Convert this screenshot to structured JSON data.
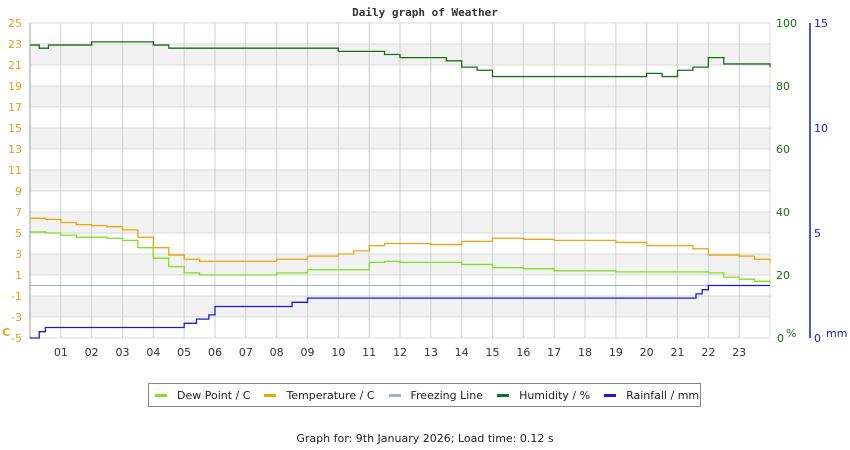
{
  "chart_data": {
    "type": "line",
    "title": "Daily graph of Weather",
    "x_ticks": [
      "01",
      "02",
      "03",
      "04",
      "05",
      "06",
      "07",
      "08",
      "09",
      "10",
      "11",
      "12",
      "13",
      "14",
      "15",
      "16",
      "17",
      "18",
      "19",
      "20",
      "21",
      "22",
      "23"
    ],
    "axes": {
      "left": {
        "label": "C",
        "ticks": [
          25,
          23,
          21,
          19,
          17,
          15,
          13,
          11,
          9,
          7,
          5,
          3,
          1,
          -1,
          -3,
          -5
        ],
        "range": [
          -5,
          25
        ],
        "color": "#e5a11a"
      },
      "right_humidity": {
        "label": "%",
        "ticks": [
          100,
          80,
          60,
          40,
          20,
          0
        ],
        "range": [
          0,
          100
        ],
        "color": "#1b6e1b"
      },
      "right_rain": {
        "label": "mm",
        "ticks": [
          15,
          10,
          5,
          0
        ],
        "range": [
          0,
          15
        ],
        "color": "#1a1ad6"
      }
    },
    "grid": true,
    "legend_position": "bottom",
    "series": [
      {
        "name": "Dew Point / C",
        "color": "#7fe01c",
        "axis": "left",
        "x": [
          0,
          0.5,
          1,
          1.5,
          2,
          2.5,
          3,
          3.5,
          4,
          4.5,
          5,
          5.5,
          6,
          7,
          8,
          9,
          10,
          11,
          11.5,
          12,
          13,
          14,
          15,
          16,
          17,
          18,
          19,
          20,
          21,
          21.5,
          22,
          22.5,
          23,
          23.5,
          24
        ],
        "values": [
          5.1,
          5.0,
          4.8,
          4.6,
          4.6,
          4.5,
          4.3,
          3.6,
          2.6,
          1.8,
          1.2,
          1.0,
          1.0,
          1.0,
          1.2,
          1.5,
          1.5,
          2.2,
          2.3,
          2.2,
          2.2,
          2.0,
          1.7,
          1.6,
          1.4,
          1.4,
          1.3,
          1.3,
          1.3,
          1.3,
          1.2,
          0.8,
          0.6,
          0.4,
          0.2
        ]
      },
      {
        "name": "Temperature / C",
        "color": "#f0a30a",
        "axis": "left",
        "x": [
          0,
          0.5,
          1,
          1.5,
          2,
          2.5,
          3,
          3.5,
          4,
          4.5,
          5,
          5.5,
          6,
          7,
          8,
          9,
          10,
          10.5,
          11,
          11.5,
          12,
          13,
          14,
          15,
          16,
          17,
          18,
          19,
          20,
          21,
          21.5,
          22,
          22.5,
          23,
          23.5,
          24
        ],
        "values": [
          6.4,
          6.3,
          6.0,
          5.8,
          5.7,
          5.6,
          5.3,
          4.6,
          3.6,
          2.9,
          2.5,
          2.3,
          2.3,
          2.3,
          2.5,
          2.8,
          3.0,
          3.3,
          3.8,
          4.0,
          4.0,
          3.9,
          4.2,
          4.5,
          4.4,
          4.3,
          4.3,
          4.1,
          3.8,
          3.8,
          3.5,
          2.9,
          2.9,
          2.8,
          2.5,
          2.2
        ]
      },
      {
        "name": "Freezing Line",
        "color": "#9fb3cc",
        "axis": "left",
        "x": [
          0,
          24
        ],
        "values": [
          0,
          0
        ]
      },
      {
        "name": "Humidity / %",
        "color": "#1b6e1b",
        "axis": "right_humidity",
        "x": [
          0,
          0.3,
          0.6,
          1,
          2,
          3,
          3.5,
          4,
          4.5,
          5,
          6,
          7,
          8,
          9,
          9.5,
          10,
          11,
          11.5,
          12,
          13,
          13.5,
          14,
          14.5,
          15,
          16,
          17,
          18,
          19,
          20,
          20.5,
          21,
          21.5,
          22,
          22.5,
          23,
          23.5,
          24
        ],
        "values": [
          93,
          92,
          93,
          93,
          94,
          94,
          94,
          93,
          92,
          92,
          92,
          92,
          92,
          92,
          92,
          91,
          91,
          90,
          89,
          89,
          88,
          86,
          85,
          83,
          83,
          83,
          83,
          83,
          84,
          83,
          85,
          86,
          89,
          87,
          87,
          87,
          86
        ]
      },
      {
        "name": "Rainfall / mm",
        "color": "#1a1ad6",
        "axis": "right_rain",
        "x": [
          0,
          0.3,
          0.5,
          4.8,
          5,
          5.4,
          5.8,
          6,
          7,
          8,
          8.5,
          9,
          12,
          15,
          18,
          21,
          21.6,
          21.8,
          22,
          23,
          24
        ],
        "values": [
          0,
          0.3,
          0.5,
          0.5,
          0.7,
          0.9,
          1.1,
          1.5,
          1.5,
          1.5,
          1.7,
          1.9,
          1.9,
          1.9,
          1.9,
          1.9,
          2.1,
          2.3,
          2.5,
          2.5,
          2.5
        ]
      }
    ]
  },
  "legend": {
    "items": [
      {
        "label": "Dew Point / C",
        "color": "#7fe01c"
      },
      {
        "label": "Temperature / C",
        "color": "#f0a30a"
      },
      {
        "label": "Freezing Line",
        "color": "#9fb3cc"
      },
      {
        "label": "Humidity / %",
        "color": "#1b6e1b"
      },
      {
        "label": "Rainfall / mm",
        "color": "#1a1ad6"
      }
    ]
  },
  "footer": {
    "text": "Graph for: 9th January 2026; Load time: 0.12 s"
  }
}
